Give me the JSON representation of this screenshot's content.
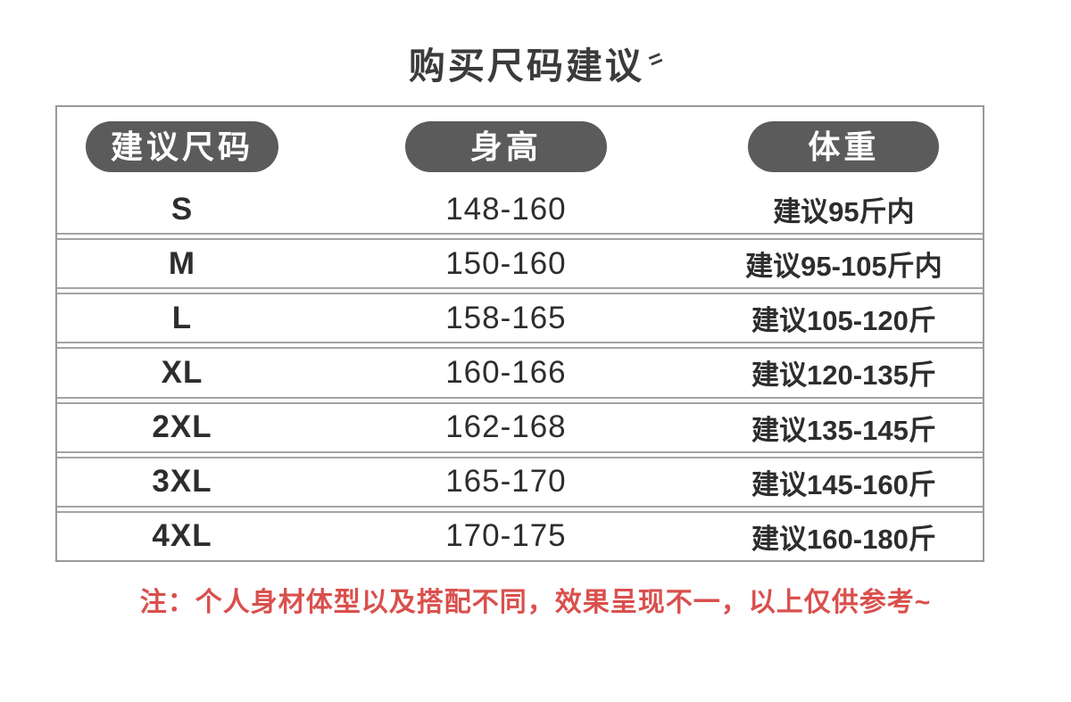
{
  "chart_data": {
    "type": "table",
    "title": "购买尺码建议",
    "columns": [
      "建议尺码",
      "身高",
      "体重"
    ],
    "rows": [
      [
        "S",
        "148-160",
        "建议95斤内"
      ],
      [
        "M",
        "150-160",
        "建议95-105斤内"
      ],
      [
        "L",
        "158-165",
        "建议105-120斤"
      ],
      [
        "XL",
        "160-166",
        "建议120-135斤"
      ],
      [
        "2XL",
        "162-168",
        "建议135-145斤"
      ],
      [
        "3XL",
        "165-170",
        "建议145-160斤"
      ],
      [
        "4XL",
        "170-175",
        "建议160-180斤"
      ]
    ],
    "footnote": "注：个人身材体型以及搭配不同，效果呈现不一，以上仅供参考~"
  },
  "title_mark": "=",
  "colors": {
    "header_pill_bg": "#5b5b5b",
    "header_pill_text": "#ffffff",
    "table_border": "#999999",
    "row_separator": "#a3a3a3",
    "body_text": "#2d2d2d",
    "note_red": "#d9504d",
    "background": "#ffffff"
  }
}
